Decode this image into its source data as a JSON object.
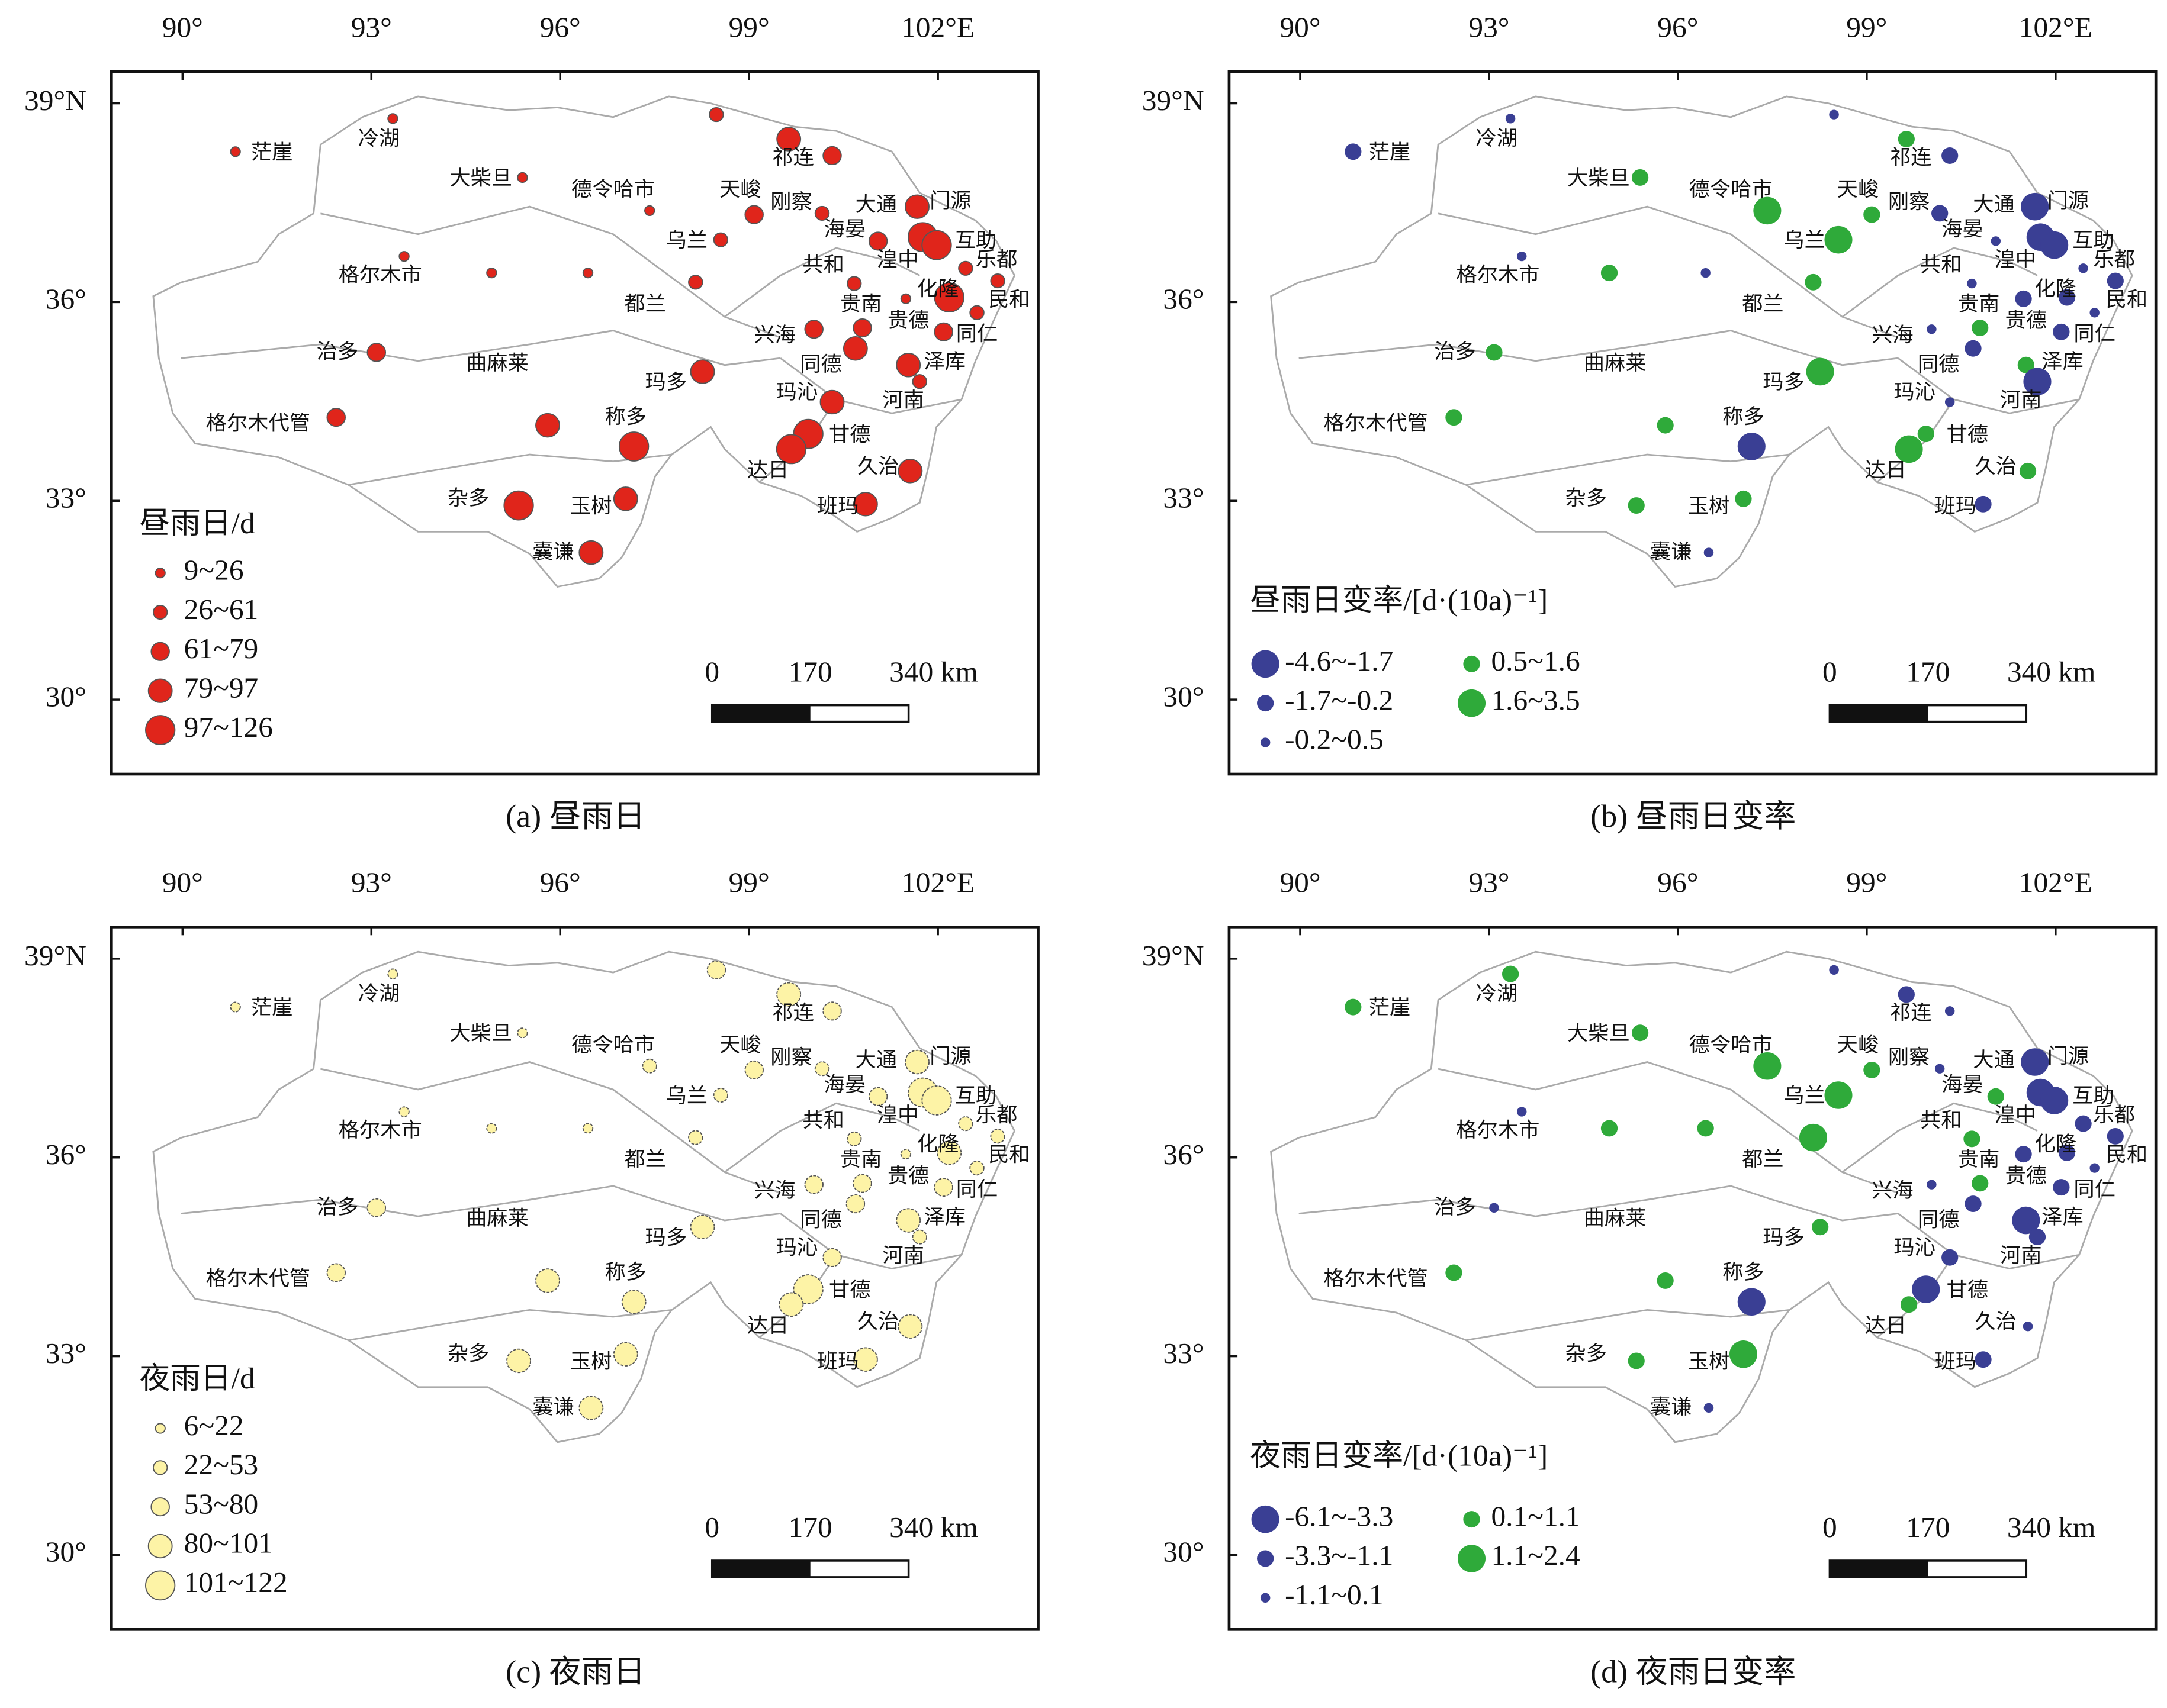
{
  "lon_ticks": [
    {
      "value": 90,
      "label": "90°"
    },
    {
      "value": 93,
      "label": "93°"
    },
    {
      "value": 96,
      "label": "96°"
    },
    {
      "value": 99,
      "label": "99°"
    },
    {
      "value": 102,
      "label": "102°E"
    }
  ],
  "lat_ticks": [
    {
      "value": 39,
      "label": "39°N"
    },
    {
      "value": 36,
      "label": "36°"
    },
    {
      "value": 33,
      "label": "33°"
    },
    {
      "value": 30,
      "label": "30°"
    }
  ],
  "scale_bar": [
    0,
    170,
    {
      "value": 340,
      "label": "340 km"
    }
  ],
  "stations": [
    {
      "name": "茫崖",
      "lon": 91.42,
      "lat": 38.23
    },
    {
      "name": "冷湖",
      "lon": 93.12,
      "lat": 38.44
    },
    {
      "name": "大柴旦",
      "lon": 94.74,
      "lat": 37.84
    },
    {
      "name": "德令哈市",
      "lon": 96.84,
      "lat": 37.67
    },
    {
      "name": "天峻",
      "lon": 98.86,
      "lat": 37.67
    },
    {
      "name": "刚察",
      "lon": 99.67,
      "lat": 37.48
    },
    {
      "name": "祁连",
      "lon": 99.7,
      "lat": 38.15
    },
    {
      "name": "门源",
      "lon": 102.2,
      "lat": 37.5
    },
    {
      "name": "大通",
      "lon": 101.02,
      "lat": 37.44
    },
    {
      "name": "海晏",
      "lon": 100.52,
      "lat": 37.07
    },
    {
      "name": "互助",
      "lon": 102.6,
      "lat": 36.9
    },
    {
      "name": "乐都",
      "lon": 102.93,
      "lat": 36.61
    },
    {
      "name": "湟中",
      "lon": 101.36,
      "lat": 36.61
    },
    {
      "name": "共和",
      "lon": 100.18,
      "lat": 36.53
    },
    {
      "name": "化隆",
      "lon": 102.0,
      "lat": 36.17
    },
    {
      "name": "民和",
      "lon": 103.13,
      "lat": 36.01
    },
    {
      "name": "贵南",
      "lon": 100.78,
      "lat": 35.94
    },
    {
      "name": "贵德",
      "lon": 101.53,
      "lat": 35.69
    },
    {
      "name": "同仁",
      "lon": 102.62,
      "lat": 35.49
    },
    {
      "name": "兴海",
      "lon": 99.41,
      "lat": 35.47
    },
    {
      "name": "同德",
      "lon": 100.14,
      "lat": 35.03
    },
    {
      "name": "泽库",
      "lon": 102.11,
      "lat": 35.07
    },
    {
      "name": "乌兰",
      "lon": 98.01,
      "lat": 36.9
    },
    {
      "name": "都兰",
      "lon": 97.35,
      "lat": 35.94
    },
    {
      "name": "格尔木市",
      "lon": 93.14,
      "lat": 36.38
    },
    {
      "name": "治多",
      "lon": 92.46,
      "lat": 35.22
    },
    {
      "name": "曲麻莱",
      "lon": 95.0,
      "lat": 35.05
    },
    {
      "name": "格尔木代管",
      "lon": 91.2,
      "lat": 34.14
    },
    {
      "name": "玛多",
      "lon": 97.68,
      "lat": 34.76
    },
    {
      "name": "称多",
      "lon": 97.04,
      "lat": 34.24
    },
    {
      "name": "玛沁",
      "lon": 99.76,
      "lat": 34.61
    },
    {
      "name": "河南",
      "lon": 101.45,
      "lat": 34.49
    },
    {
      "name": "甘德",
      "lon": 100.6,
      "lat": 33.97
    },
    {
      "name": "达日",
      "lon": 99.3,
      "lat": 33.43
    },
    {
      "name": "久治",
      "lon": 101.05,
      "lat": 33.49
    },
    {
      "name": "杂多",
      "lon": 94.54,
      "lat": 33.01
    },
    {
      "name": "玉树",
      "lon": 96.49,
      "lat": 32.89
    },
    {
      "name": "班玛",
      "lon": 100.41,
      "lat": 32.89
    },
    {
      "name": "囊谦",
      "lon": 95.89,
      "lat": 32.2
    }
  ],
  "sites": [
    {
      "lon": 90.84,
      "lat": 38.27
    },
    {
      "lon": 93.34,
      "lat": 38.77
    },
    {
      "lon": 95.4,
      "lat": 37.88
    },
    {
      "lon": 97.42,
      "lat": 37.38
    },
    {
      "lon": 93.52,
      "lat": 36.69
    },
    {
      "lon": 94.91,
      "lat": 36.44
    },
    {
      "lon": 96.44,
      "lat": 36.44
    },
    {
      "lon": 98.15,
      "lat": 36.3
    },
    {
      "lon": 98.55,
      "lat": 36.94
    },
    {
      "lon": 98.48,
      "lat": 38.83
    },
    {
      "lon": 99.08,
      "lat": 37.32
    },
    {
      "lon": 99.63,
      "lat": 38.46
    },
    {
      "lon": 100.32,
      "lat": 38.21
    },
    {
      "lon": 100.16,
      "lat": 37.34
    },
    {
      "lon": 101.05,
      "lat": 36.92
    },
    {
      "lon": 100.67,
      "lat": 36.28
    },
    {
      "lon": 101.67,
      "lat": 37.44
    },
    {
      "lon": 101.76,
      "lat": 36.98
    },
    {
      "lon": 101.98,
      "lat": 36.86
    },
    {
      "lon": 102.44,
      "lat": 36.51
    },
    {
      "lon": 102.95,
      "lat": 36.32
    },
    {
      "lon": 102.62,
      "lat": 35.84
    },
    {
      "lon": 102.18,
      "lat": 36.07
    },
    {
      "lon": 101.49,
      "lat": 36.05
    },
    {
      "lon": 102.09,
      "lat": 35.55
    },
    {
      "lon": 100.8,
      "lat": 35.61
    },
    {
      "lon": 100.03,
      "lat": 35.59
    },
    {
      "lon": 100.69,
      "lat": 35.3
    },
    {
      "lon": 101.53,
      "lat": 35.05
    },
    {
      "lon": 101.71,
      "lat": 34.8
    },
    {
      "lon": 93.08,
      "lat": 35.24
    },
    {
      "lon": 92.44,
      "lat": 34.26
    },
    {
      "lon": 98.26,
      "lat": 34.95
    },
    {
      "lon": 95.8,
      "lat": 34.14
    },
    {
      "lon": 97.17,
      "lat": 33.82
    },
    {
      "lon": 100.32,
      "lat": 34.49
    },
    {
      "lon": 99.94,
      "lat": 34.01
    },
    {
      "lon": 99.67,
      "lat": 33.78
    },
    {
      "lon": 101.56,
      "lat": 33.45
    },
    {
      "lon": 97.04,
      "lat": 33.03
    },
    {
      "lon": 95.34,
      "lat": 32.93
    },
    {
      "lon": 96.49,
      "lat": 32.22
    },
    {
      "lon": 100.85,
      "lat": 32.95
    }
  ],
  "panels": [
    {
      "caption": "(a) 昼雨日",
      "legend_title": "昼雨日/d",
      "classes": [
        {
          "label": "9~26",
          "color": "#e0251b"
        },
        {
          "label": "26~61",
          "color": "#e0251b"
        },
        {
          "label": "61~79",
          "color": "#e0251b"
        },
        {
          "label": "79~97",
          "color": "#e0251b"
        },
        {
          "label": "97~126",
          "color": "#e0251b"
        }
      ],
      "site_class": [
        0,
        0,
        0,
        0,
        0,
        0,
        0,
        1,
        1,
        1,
        2,
        3,
        2,
        1,
        2,
        1,
        3,
        4,
        4,
        1,
        1,
        1,
        4,
        0,
        2,
        2,
        2,
        3,
        3,
        1,
        2,
        2,
        3,
        3,
        4,
        3,
        4,
        4,
        3,
        3,
        4,
        3,
        3
      ]
    },
    {
      "caption": "(b) 昼雨日变率",
      "legend_title": "昼雨日变率/[d·(10a)⁻¹]",
      "classes": [
        {
          "label": "-4.6~-1.7",
          "color": "#3a3f94"
        },
        {
          "label": "-1.7~-0.2",
          "color": "#3a3f94"
        },
        {
          "label": "-0.2~0.5",
          "color": "#3a3f94"
        },
        {
          "label": "0.5~1.6",
          "color": "#2faa3a"
        },
        {
          "label": "1.6~3.5",
          "color": "#2faa3a"
        }
      ],
      "site_class": [
        1,
        2,
        3,
        4,
        2,
        3,
        2,
        3,
        4,
        2,
        3,
        3,
        1,
        1,
        2,
        2,
        0,
        0,
        0,
        2,
        1,
        2,
        1,
        1,
        1,
        3,
        2,
        1,
        3,
        0,
        3,
        3,
        4,
        3,
        0,
        2,
        3,
        4,
        3,
        3,
        3,
        2,
        1
      ]
    },
    {
      "caption": "(c) 夜雨日",
      "legend_title": "夜雨日/d",
      "classes": [
        {
          "label": "6~22",
          "color": "#fdf3a6"
        },
        {
          "label": "22~53",
          "color": "#fdf3a6"
        },
        {
          "label": "53~80",
          "color": "#fdf3a6"
        },
        {
          "label": "80~101",
          "color": "#fdf3a6"
        },
        {
          "label": "101~122",
          "color": "#fdf3a6"
        }
      ],
      "site_class": [
        0,
        0,
        0,
        1,
        0,
        0,
        0,
        1,
        1,
        2,
        2,
        3,
        2,
        1,
        2,
        1,
        3,
        4,
        4,
        1,
        1,
        1,
        3,
        0,
        2,
        2,
        2,
        2,
        3,
        1,
        2,
        2,
        3,
        3,
        3,
        2,
        4,
        3,
        3,
        3,
        3,
        3,
        3
      ]
    },
    {
      "caption": "(d) 夜雨日变率",
      "legend_title": "夜雨日变率/[d·(10a)⁻¹]",
      "classes": [
        {
          "label": "-6.1~-3.3",
          "color": "#3a3f94"
        },
        {
          "label": "-3.3~-1.1",
          "color": "#3a3f94"
        },
        {
          "label": "-1.1~0.1",
          "color": "#3a3f94"
        },
        {
          "label": "0.1~1.1",
          "color": "#2faa3a"
        },
        {
          "label": "1.1~2.4",
          "color": "#2faa3a"
        }
      ],
      "site_class": [
        3,
        3,
        3,
        4,
        2,
        3,
        3,
        4,
        4,
        2,
        3,
        1,
        2,
        2,
        3,
        3,
        0,
        0,
        0,
        1,
        1,
        2,
        1,
        1,
        1,
        3,
        2,
        1,
        0,
        1,
        2,
        3,
        3,
        3,
        0,
        1,
        0,
        3,
        2,
        4,
        3,
        2,
        1
      ]
    }
  ]
}
